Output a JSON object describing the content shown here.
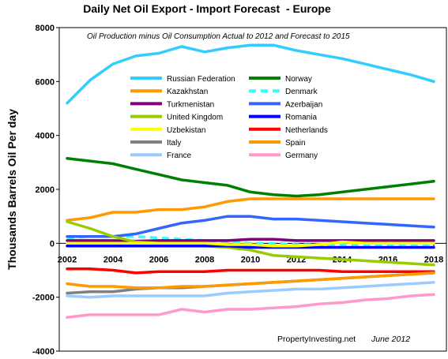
{
  "chart_data": {
    "type": "line",
    "title": "Daily Net Oil Export - Import Forecast  - Europe",
    "subtitle": "Oil Production minus Oil Consumption Actual to 2012 and Forecast to 2015",
    "xlabel": "",
    "ylabel": "Thousands Barrels Oil Per day",
    "xlim": [
      2002,
      2018
    ],
    "ylim": [
      -4000,
      8000
    ],
    "x_ticks": [
      2002,
      2004,
      2006,
      2008,
      2010,
      2012,
      2014,
      2016,
      2018
    ],
    "y_ticks": [
      -4000,
      -2000,
      0,
      2000,
      4000,
      6000,
      8000
    ],
    "x_tick_labels": [
      "2002",
      "2004",
      "2006",
      "2008",
      "2010",
      "2012",
      "2014",
      "2016",
      "2018"
    ],
    "y_tick_labels": [
      "-4000",
      "-2000",
      "0",
      "2000",
      "4000",
      "6000",
      "8000"
    ],
    "grid": false,
    "legend_position": "upper-center",
    "credit": "PropertyInvesting.net",
    "credit_date": "June 2012",
    "x": [
      2002,
      2003,
      2004,
      2005,
      2006,
      2007,
      2008,
      2009,
      2010,
      2011,
      2012,
      2013,
      2014,
      2015,
      2016,
      2017,
      2018
    ],
    "series": [
      {
        "name": "Russian Federation",
        "color": "#33ccff",
        "dash": "solid",
        "values": [
          5200,
          6050,
          6650,
          6950,
          7050,
          7300,
          7100,
          7250,
          7350,
          7350,
          7150,
          7000,
          6850,
          6650,
          6450,
          6250,
          6000
        ]
      },
      {
        "name": "Norway",
        "color": "#008000",
        "dash": "solid",
        "values": [
          3150,
          3050,
          2950,
          2750,
          2550,
          2350,
          2250,
          2150,
          1900,
          1800,
          1750,
          1800,
          1900,
          2000,
          2100,
          2200,
          2300
        ]
      },
      {
        "name": "Kazakhstan",
        "color": "#ff9900",
        "dash": "solid",
        "values": [
          850,
          950,
          1150,
          1150,
          1250,
          1250,
          1350,
          1550,
          1650,
          1650,
          1650,
          1650,
          1650,
          1650,
          1650,
          1650,
          1650
        ]
      },
      {
        "name": "Denmark",
        "color": "#33ffff",
        "dash": "dashed",
        "values": [
          200,
          250,
          250,
          250,
          200,
          150,
          100,
          50,
          0,
          0,
          -50,
          -50,
          -50,
          -50,
          -50,
          -50,
          -50
        ]
      },
      {
        "name": "Turkmenistan",
        "color": "#800080",
        "dash": "solid",
        "values": [
          100,
          100,
          100,
          80,
          100,
          100,
          100,
          100,
          150,
          150,
          100,
          100,
          100,
          100,
          100,
          100,
          100
        ]
      },
      {
        "name": "Azerbaijan",
        "color": "#3366ff",
        "dash": "solid",
        "values": [
          250,
          250,
          250,
          350,
          550,
          750,
          850,
          1000,
          1000,
          900,
          900,
          850,
          800,
          750,
          700,
          650,
          600
        ]
      },
      {
        "name": "United Kingdom",
        "color": "#99cc00",
        "dash": "solid",
        "values": [
          800,
          550,
          250,
          50,
          0,
          -50,
          -100,
          -150,
          -250,
          -450,
          -500,
          -550,
          -600,
          -650,
          -700,
          -750,
          -800
        ]
      },
      {
        "name": "Romania",
        "color": "#0000ff",
        "dash": "solid",
        "values": [
          -100,
          -100,
          -100,
          -100,
          -100,
          -100,
          -100,
          -100,
          -150,
          -150,
          -150,
          -150,
          -150,
          -150,
          -150,
          -150,
          -150
        ]
      },
      {
        "name": "Uzbekistan",
        "color": "#ffff00",
        "dash": "solid",
        "values": [
          0,
          0,
          0,
          0,
          0,
          0,
          0,
          -50,
          -50,
          -100,
          -100,
          -50,
          50,
          0,
          0,
          0,
          0
        ]
      },
      {
        "name": "Netherlands",
        "color": "#ff0000",
        "dash": "solid",
        "values": [
          -950,
          -950,
          -1000,
          -1100,
          -1050,
          -1050,
          -1050,
          -1000,
          -1000,
          -1000,
          -1000,
          -1000,
          -1050,
          -1050,
          -1050,
          -1050,
          -1050
        ]
      },
      {
        "name": "Italy",
        "color": "#808080",
        "dash": "solid",
        "values": [
          -1850,
          -1800,
          -1800,
          -1700,
          -1650,
          -1650,
          -1600,
          -1550,
          -1500,
          -1450,
          -1400,
          -1350,
          -1300,
          -1250,
          -1200,
          -1150,
          -1100
        ]
      },
      {
        "name": "Spain",
        "color": "#ff9900",
        "dash": "solid",
        "values": [
          -1500,
          -1600,
          -1600,
          -1650,
          -1650,
          -1600,
          -1600,
          -1550,
          -1500,
          -1450,
          -1400,
          -1350,
          -1300,
          -1250,
          -1200,
          -1150,
          -1100
        ]
      },
      {
        "name": "France",
        "color": "#99ccff",
        "dash": "solid",
        "values": [
          -1950,
          -2000,
          -1950,
          -1950,
          -1950,
          -1950,
          -1950,
          -1850,
          -1800,
          -1750,
          -1700,
          -1700,
          -1650,
          -1600,
          -1550,
          -1500,
          -1450
        ]
      },
      {
        "name": "Germany",
        "color": "#ff99cc",
        "dash": "solid",
        "values": [
          -2750,
          -2650,
          -2650,
          -2650,
          -2650,
          -2450,
          -2550,
          -2450,
          -2450,
          -2400,
          -2350,
          -2250,
          -2200,
          -2100,
          -2050,
          -1950,
          -1900
        ]
      }
    ]
  }
}
